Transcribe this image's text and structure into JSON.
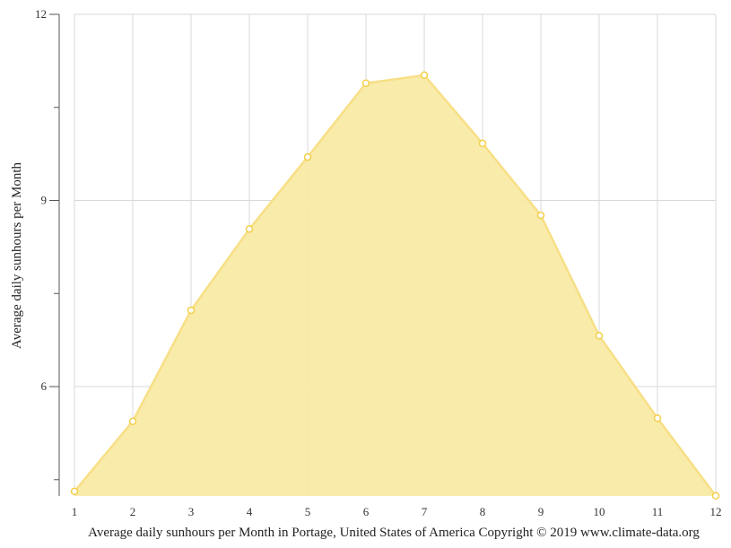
{
  "chart_data": {
    "type": "area",
    "title": "",
    "xlabel": "Average daily sunhours per Month in Portage, United States of America Copyright © 2019 www.climate-data.org",
    "ylabel": "Average daily sunhours per Month",
    "categories": [
      "1",
      "2",
      "3",
      "4",
      "5",
      "6",
      "7",
      "8",
      "9",
      "10",
      "11",
      "12"
    ],
    "series": [
      {
        "name": "Average daily sunhours",
        "values": [
          4.31,
          5.44,
          7.23,
          8.54,
          9.7,
          10.89,
          11.02,
          9.92,
          8.76,
          6.82,
          5.49,
          4.24
        ]
      }
    ],
    "ylim": [
      4.24,
      12
    ],
    "yticks_major": [
      6,
      9,
      12
    ],
    "yticks_minor": [
      4.5,
      7.5,
      10.5
    ],
    "grid": true,
    "legend": "none",
    "colors": {
      "fill": "#f9eaa4",
      "line": "#f7df86",
      "marker_stroke": "#f2cf4a",
      "marker_fill": "#ffffff",
      "grid": "#d9d9d9",
      "axis": "#555555"
    }
  }
}
